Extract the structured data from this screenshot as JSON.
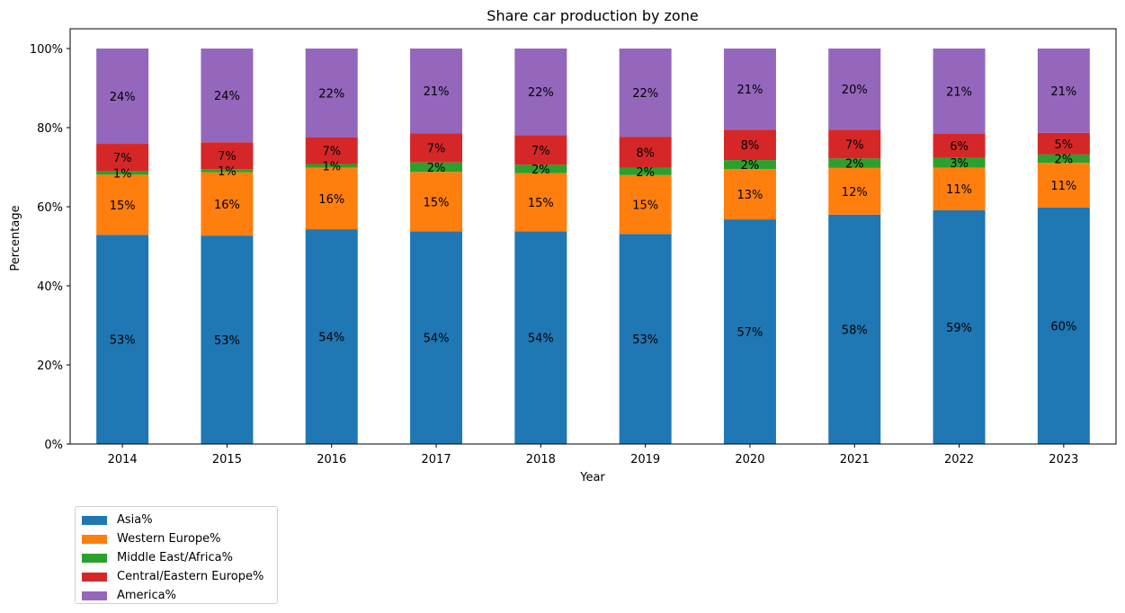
{
  "chart_data": {
    "type": "bar",
    "stacked": true,
    "title": "Share car production by zone",
    "xlabel": "Year",
    "ylabel": "Percentage",
    "ylim": [
      0,
      100
    ],
    "yticks": [
      "0%",
      "20%",
      "40%",
      "60%",
      "80%",
      "100%"
    ],
    "grid": false,
    "legend_position": "below-left",
    "categories": [
      "2014",
      "2015",
      "2016",
      "2017",
      "2018",
      "2019",
      "2020",
      "2021",
      "2022",
      "2023"
    ],
    "series": [
      {
        "name": "Asia%",
        "color": "#1f77b4",
        "values": [
          52.9,
          52.7,
          54.3,
          53.8,
          53.8,
          53.1,
          56.8,
          58.0,
          59.1,
          59.8
        ],
        "labels": [
          "53%",
          "53%",
          "54%",
          "54%",
          "54%",
          "53%",
          "57%",
          "58%",
          "59%",
          "60%"
        ]
      },
      {
        "name": "Western Europe%",
        "color": "#ff7f0e",
        "values": [
          15.2,
          16.0,
          15.6,
          15.0,
          14.7,
          14.9,
          12.7,
          11.8,
          10.8,
          11.3
        ],
        "labels": [
          "15%",
          "16%",
          "16%",
          "15%",
          "15%",
          "15%",
          "13%",
          "12%",
          "11%",
          "11%"
        ]
      },
      {
        "name": "Middle East/Africa%",
        "color": "#2ca02c",
        "values": [
          0.9,
          0.8,
          0.9,
          2.4,
          2.1,
          1.8,
          2.3,
          2.4,
          2.5,
          2.1
        ],
        "labels": [
          "1%",
          "1%",
          "1%",
          "2%",
          "2%",
          "2%",
          "2%",
          "2%",
          "3%",
          "2%"
        ]
      },
      {
        "name": "Central/Eastern Europe%",
        "color": "#d62728",
        "values": [
          6.9,
          6.8,
          6.7,
          7.4,
          7.5,
          7.9,
          7.7,
          7.3,
          6.1,
          5.5
        ],
        "labels": [
          "7%",
          "7%",
          "7%",
          "7%",
          "7%",
          "8%",
          "8%",
          "7%",
          "6%",
          "5%"
        ]
      },
      {
        "name": "America%",
        "color": "#9467bd",
        "values": [
          24.1,
          23.7,
          22.5,
          21.4,
          21.9,
          22.3,
          20.5,
          20.5,
          21.5,
          21.3
        ],
        "labels": [
          "24%",
          "24%",
          "22%",
          "21%",
          "22%",
          "22%",
          "21%",
          "20%",
          "21%",
          "21%"
        ]
      }
    ]
  }
}
